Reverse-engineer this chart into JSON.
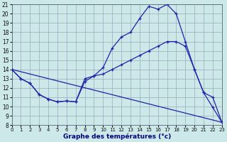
{
  "bg_color": "#cce8e8",
  "grid_color": "#99aabb",
  "line_color": "#2222aa",
  "xlim": [
    0,
    23
  ],
  "ylim": [
    8,
    21
  ],
  "ytick_vals": [
    8,
    9,
    10,
    11,
    12,
    13,
    14,
    15,
    16,
    17,
    18,
    19,
    20,
    21
  ],
  "xtick_vals": [
    0,
    1,
    2,
    3,
    4,
    5,
    6,
    7,
    8,
    9,
    10,
    11,
    12,
    13,
    14,
    15,
    16,
    17,
    18,
    19,
    20,
    21,
    22,
    23
  ],
  "xlabel": "Graphe des températures (°c)",
  "curve1_x": [
    0,
    1,
    2,
    3,
    4,
    5,
    6,
    7,
    8,
    9,
    10,
    11,
    12,
    13,
    14,
    15,
    16,
    17,
    18,
    19,
    20,
    21,
    22,
    23
  ],
  "curve1_y": [
    14.0,
    13.0,
    12.5,
    11.3,
    10.8,
    10.5,
    10.6,
    10.5,
    12.7,
    13.3,
    14.2,
    16.3,
    17.5,
    18.0,
    19.5,
    20.8,
    20.5,
    21.0,
    20.0,
    17.0,
    14.0,
    11.5,
    9.9,
    8.3
  ],
  "curve2_x": [
    0,
    1,
    2,
    3,
    4,
    5,
    6,
    7,
    8,
    9,
    10,
    11,
    12,
    13,
    14,
    15,
    16,
    17,
    18,
    19,
    20,
    21,
    22,
    23
  ],
  "curve2_y": [
    14.0,
    13.0,
    12.5,
    11.3,
    10.8,
    10.5,
    10.6,
    10.5,
    13.0,
    13.3,
    13.5,
    14.0,
    14.5,
    15.0,
    15.5,
    16.0,
    16.5,
    17.0,
    17.0,
    16.5,
    14.0,
    11.5,
    11.0,
    8.3
  ],
  "curve3_x": [
    0,
    23
  ],
  "curve3_y": [
    14.0,
    8.3
  ]
}
